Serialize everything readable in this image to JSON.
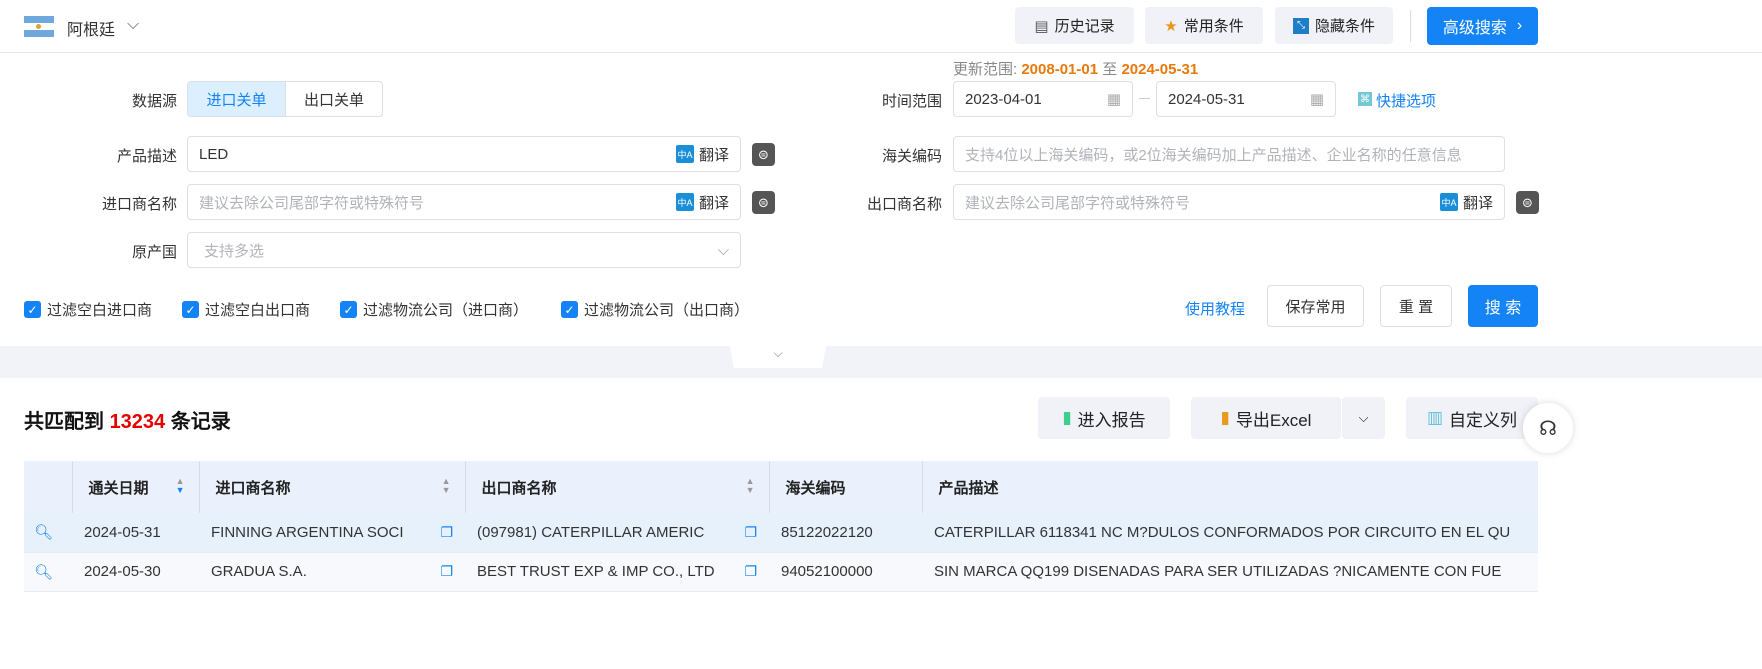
{
  "header": {
    "country": "阿根廷",
    "history": "历史记录",
    "favorites": "常用条件",
    "hide": "隐藏条件",
    "advanced": "高级搜索"
  },
  "form": {
    "update_label": "更新范围:",
    "update_start": "2008-01-01",
    "update_to": "至",
    "update_end": "2024-05-31",
    "source_label": "数据源",
    "source_import": "进口关单",
    "source_export": "出口关单",
    "time_label": "时间范围",
    "date_start": "2023-04-01",
    "date_end": "2024-05-31",
    "quick": "快捷选项",
    "product_label": "产品描述",
    "product_value": "LED",
    "translate": "翻译",
    "hs_label": "海关编码",
    "hs_placeholder": "支持4位以上海关编码，或2位海关编码加上产品描述、企业名称的任意信息",
    "importer_label": "进口商名称",
    "importer_placeholder": "建议去除公司尾部字符或特殊符号",
    "exporter_label": "出口商名称",
    "exporter_placeholder": "建议去除公司尾部字符或特殊符号",
    "origin_label": "原产国",
    "origin_placeholder": "支持多选",
    "checkboxes": [
      "过滤空白进口商",
      "过滤空白出口商",
      "过滤物流公司（进口商）",
      "过滤物流公司（出口商）"
    ],
    "tutorial": "使用教程",
    "save": "保存常用",
    "reset": "重 置",
    "search": "搜 索"
  },
  "results": {
    "prefix": "共匹配到",
    "count": "13234",
    "suffix": "条记录",
    "report": "进入报告",
    "export": "导出Excel",
    "custom": "自定义列"
  },
  "table": {
    "headers": [
      "通关日期",
      "进口商名称",
      "出口商名称",
      "海关编码",
      "产品描述"
    ],
    "rows": [
      [
        "2024-05-31",
        "FINNING ARGENTINA SOCI",
        "(097981) CATERPILLAR AMERIC",
        "85122022120",
        "CATERPILLAR 6118341 NC M?DULOS CONFORMADOS POR CIRCUITO EN EL QU"
      ],
      [
        "2024-05-30",
        "GRADUA S.A.",
        "BEST TRUST EXP & IMP CO., LTD",
        "94052100000",
        "SIN MARCA QQ199 DISENADAS PARA SER UTILIZADAS ?NICAMENTE CON FUE"
      ]
    ]
  },
  "colors": {
    "primary": "#1383f5",
    "orange": "#e8790c",
    "count": "#e60000"
  }
}
